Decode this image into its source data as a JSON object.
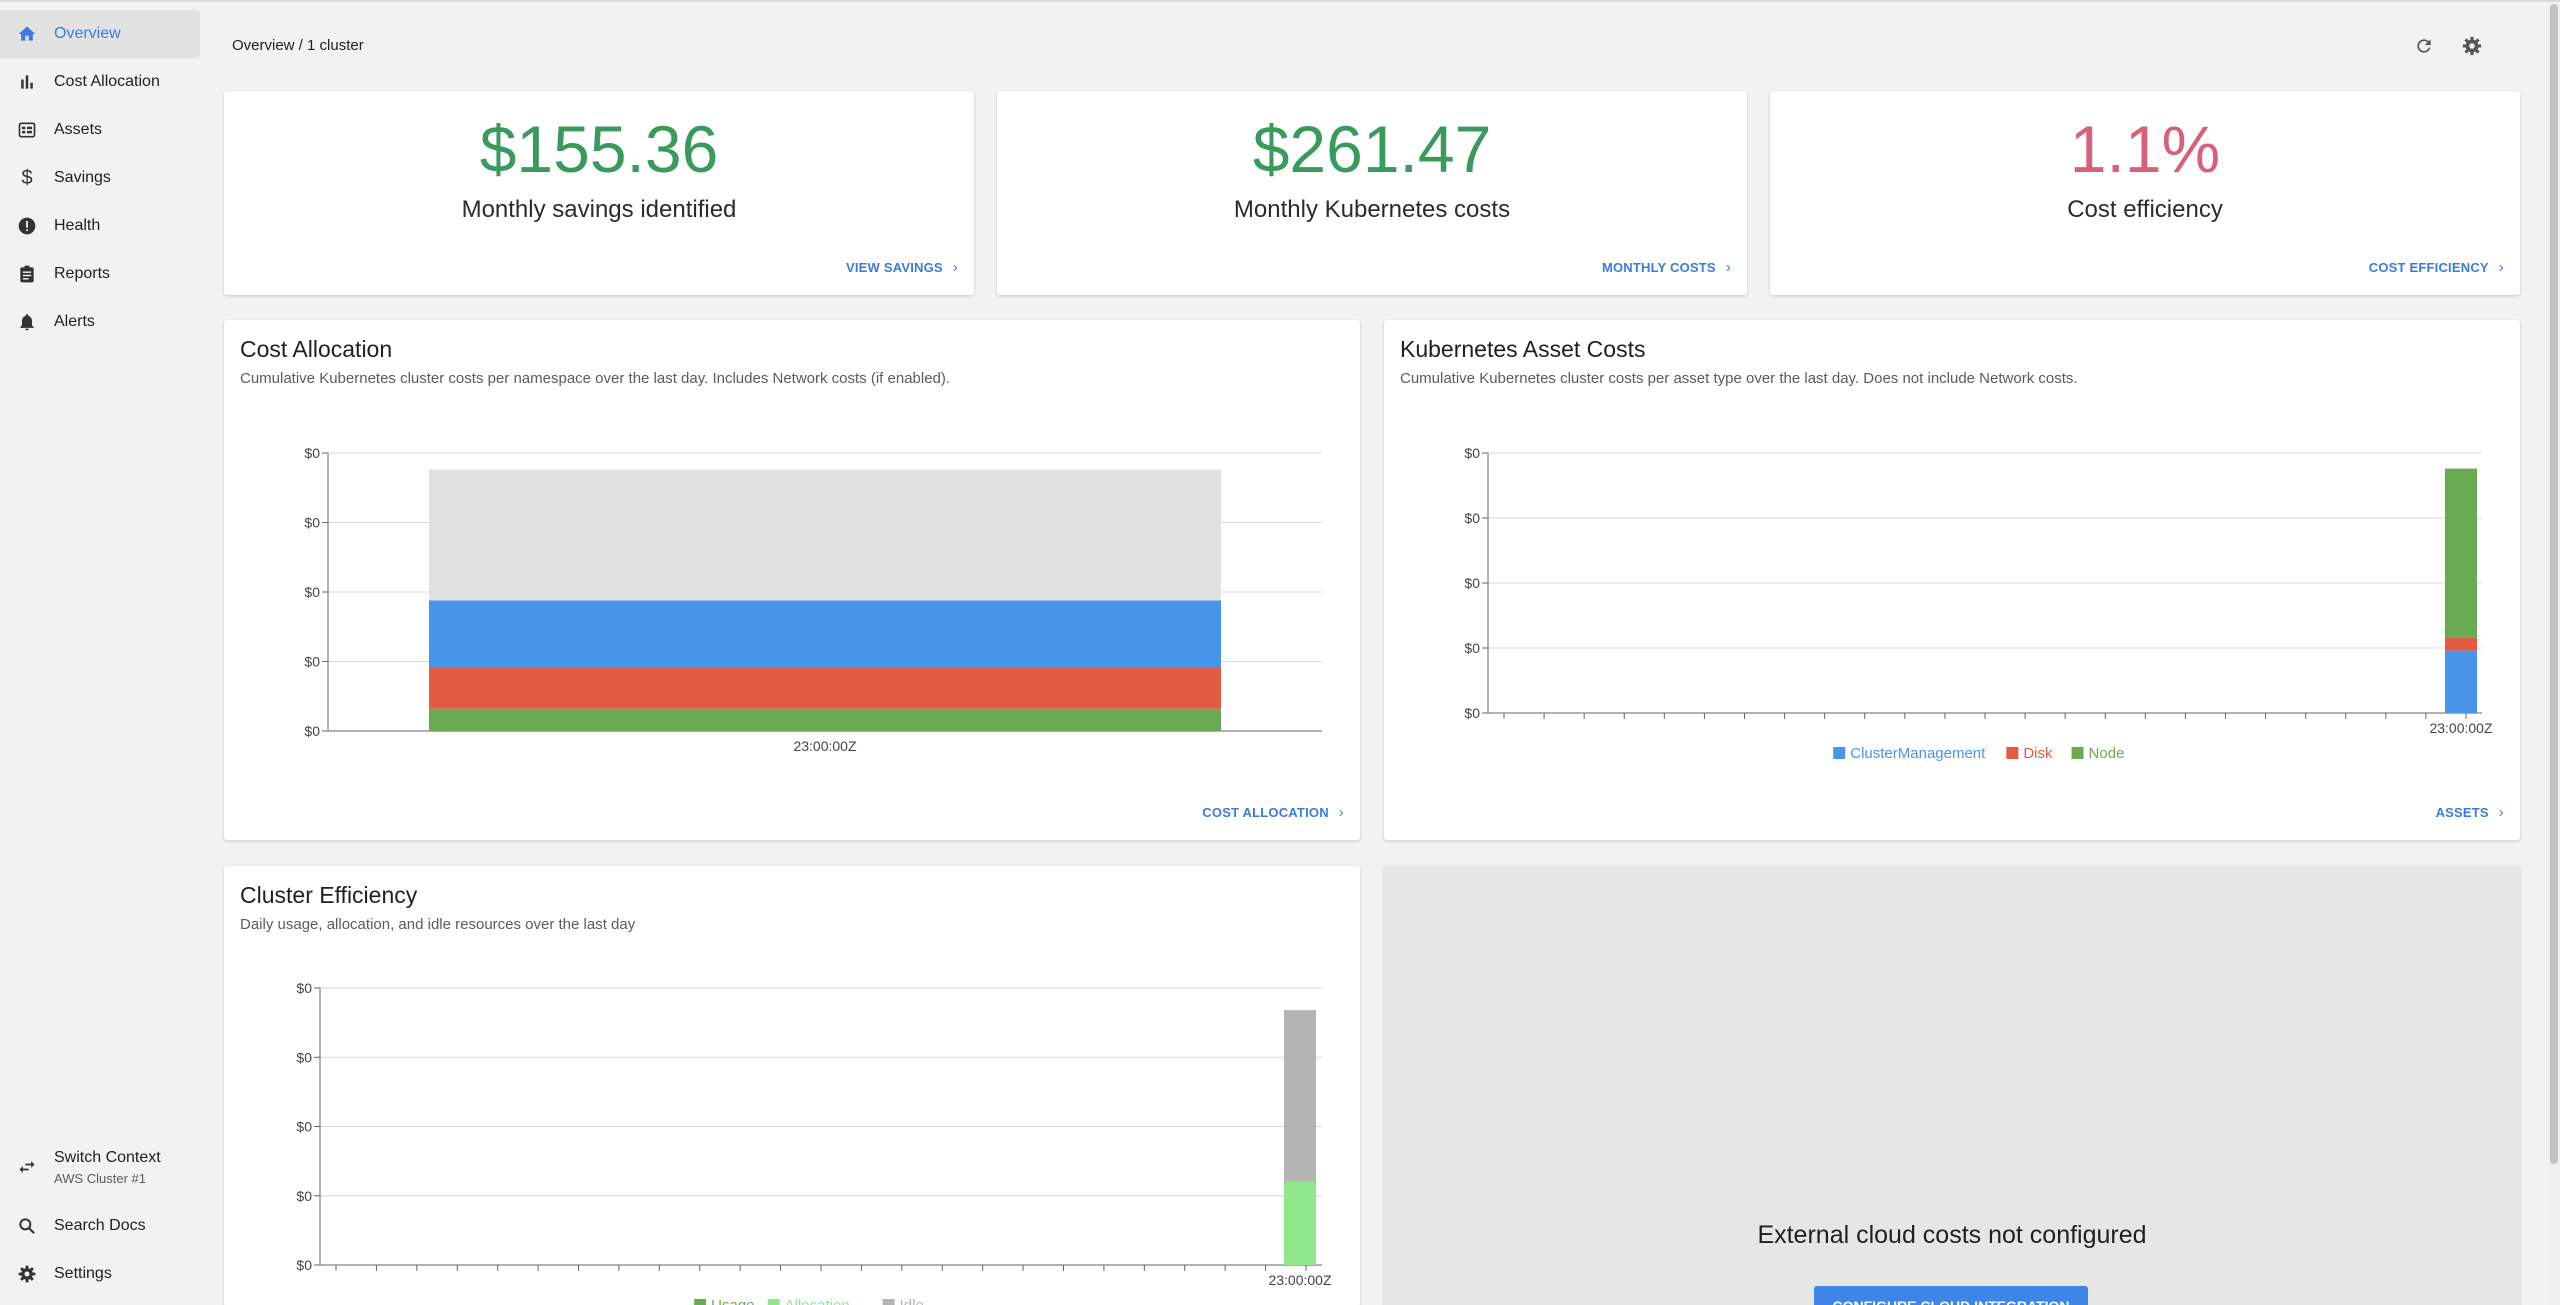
{
  "sidebar": {
    "items": [
      {
        "label": "Overview",
        "icon": "home-icon",
        "active": true
      },
      {
        "label": "Cost Allocation",
        "icon": "bar-chart-icon"
      },
      {
        "label": "Assets",
        "icon": "assets-icon"
      },
      {
        "label": "Savings",
        "icon": "dollar-icon"
      },
      {
        "label": "Health",
        "icon": "alert-circle-icon"
      },
      {
        "label": "Reports",
        "icon": "clipboard-icon"
      },
      {
        "label": "Alerts",
        "icon": "bell-icon"
      }
    ],
    "bottom": {
      "switch_context": {
        "label": "Switch Context",
        "sub": "AWS Cluster #1",
        "icon": "swap-icon"
      },
      "search_docs": {
        "label": "Search Docs",
        "icon": "search-icon"
      },
      "settings": {
        "label": "Settings",
        "icon": "gear-icon"
      }
    }
  },
  "header": {
    "breadcrumb": "Overview / 1 cluster",
    "icons": [
      "refresh-icon",
      "gear-icon"
    ]
  },
  "stats": [
    {
      "value": "$155.36",
      "label": "Monthly savings identified",
      "link": "VIEW SAVINGS",
      "color": "#3a9a5b"
    },
    {
      "value": "$261.47",
      "label": "Monthly Kubernetes costs",
      "link": "MONTHLY COSTS",
      "color": "#3a9a5b"
    },
    {
      "value": "1.1%",
      "label": "Cost efficiency",
      "link": "COST EFFICIENCY",
      "color": "#d9607a"
    }
  ],
  "panels": {
    "cost_allocation": {
      "title": "Cost Allocation",
      "subtitle": "Cumulative Kubernetes cluster costs per namespace over the last day. Includes Network costs (if enabled).",
      "link": "COST ALLOCATION"
    },
    "asset_costs": {
      "title": "Kubernetes Asset Costs",
      "subtitle": "Cumulative Kubernetes cluster costs per asset type over the last day. Does not include Network costs.",
      "link": "ASSETS"
    },
    "cluster_efficiency": {
      "title": "Cluster Efficiency",
      "subtitle": "Daily usage, allocation, and idle resources over the last day"
    },
    "external": {
      "title": "External cloud costs not configured",
      "button": "CONFIGURE CLOUD INTEGRATION"
    }
  },
  "chart_data": [
    {
      "type": "bar",
      "stacked": true,
      "categories": [
        "23:00:00Z"
      ],
      "y_tick_labels": [
        "$0",
        "$0",
        "$0",
        "$0",
        "$0"
      ],
      "series": [
        {
          "values": [
            0.08
          ],
          "color": "#6aaa52"
        },
        {
          "values": [
            0.15
          ],
          "color": "#e25b40"
        },
        {
          "values": [
            0.24
          ],
          "color": "#4a95ec"
        },
        {
          "values": [
            0.47
          ],
          "color": "#e0e0e0"
        }
      ],
      "ylim": [
        0,
        1
      ],
      "grid": true
    },
    {
      "type": "bar",
      "stacked": true,
      "categories": [
        "23:00:00Z"
      ],
      "y_tick_labels": [
        "$0",
        "$0",
        "$0",
        "$0",
        "$0"
      ],
      "series": [
        {
          "name": "ClusterManagement",
          "values": [
            0.24
          ],
          "color": "#4a95ec"
        },
        {
          "name": "Disk",
          "values": [
            0.05
          ],
          "color": "#e25b40"
        },
        {
          "name": "Node",
          "values": [
            0.65
          ],
          "color": "#6aaa52"
        }
      ],
      "ylim": [
        0,
        1
      ],
      "grid": true,
      "legend": "bottom"
    },
    {
      "type": "bar",
      "stacked": true,
      "categories": [
        "23:00:00Z"
      ],
      "y_tick_labels": [
        "$0",
        "$0",
        "$0",
        "$0",
        "$0"
      ],
      "series": [
        {
          "name": "Usage",
          "values": [
            0.0
          ],
          "color": "#6aaa52"
        },
        {
          "name": "Allocation",
          "values": [
            0.3
          ],
          "color": "#8ee88a"
        },
        {
          "name": "Idle",
          "values": [
            0.62
          ],
          "color": "#b4b4b4"
        }
      ],
      "ylim": [
        0,
        1
      ],
      "grid": true,
      "legend": "bottom"
    }
  ]
}
